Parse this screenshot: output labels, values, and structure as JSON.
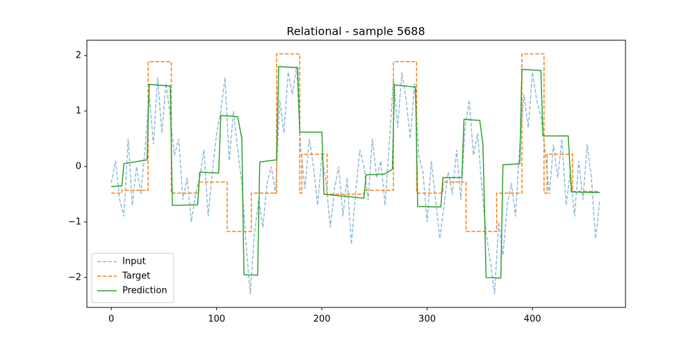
{
  "chart_data": {
    "type": "line",
    "title": "Relational - sample 5688",
    "xlim": [
      -23.2,
      488.4
    ],
    "ylim": [
      -2.54,
      2.275
    ],
    "xticks": [
      0,
      100,
      200,
      300,
      400
    ],
    "yticks": [
      {
        "value": -2,
        "label": "−2"
      },
      {
        "value": -1,
        "label": "−1"
      },
      0,
      1,
      2
    ],
    "grid": false,
    "legend": "lower left",
    "series": [
      {
        "name": "Input",
        "color": "#1f77b4",
        "linestyle": "dashed",
        "alpha": 0.5,
        "x": [
          0,
          4,
          8,
          12,
          16,
          20,
          24,
          28,
          32,
          36,
          40,
          44,
          48,
          52,
          56,
          60,
          64,
          68,
          72,
          76,
          80,
          84,
          88,
          92,
          96,
          100,
          104,
          108,
          112,
          116,
          120,
          124,
          128,
          132,
          136,
          140,
          144,
          148,
          152,
          156,
          160,
          164,
          168,
          172,
          176,
          180,
          184,
          188,
          192,
          196,
          200,
          204,
          208,
          212,
          216,
          220,
          224,
          228,
          232,
          236,
          240,
          244,
          248,
          252,
          256,
          260,
          264,
          268,
          272,
          276,
          280,
          284,
          288,
          292,
          296,
          300,
          304,
          308,
          312,
          316,
          320,
          324,
          328,
          332,
          336,
          340,
          344,
          348,
          352,
          356,
          360,
          364,
          368,
          372,
          376,
          380,
          384,
          388,
          392,
          396,
          400,
          404,
          408,
          412,
          416,
          420,
          424,
          428,
          432,
          436,
          440,
          444,
          448,
          452,
          456,
          460,
          464
        ],
        "values": [
          -0.3,
          0.1,
          -0.6,
          -0.9,
          0.5,
          -0.7,
          0.0,
          -0.5,
          0.3,
          1.3,
          0.4,
          1.6,
          0.6,
          1.5,
          0.9,
          0.2,
          0.5,
          -0.6,
          -0.2,
          -1.0,
          -0.5,
          -0.2,
          0.3,
          -0.9,
          -0.1,
          0.6,
          1.0,
          1.6,
          0.1,
          1.0,
          0.3,
          -0.3,
          -1.4,
          -2.3,
          -1.2,
          -0.6,
          -1.1,
          -0.3,
          0.0,
          -0.5,
          1.2,
          0.6,
          1.7,
          1.3,
          1.8,
          0.3,
          -0.4,
          0.5,
          0.0,
          -0.7,
          0.2,
          -0.3,
          -1.1,
          -0.4,
          0.0,
          -0.9,
          -0.2,
          -1.4,
          -0.5,
          0.3,
          0.0,
          -0.6,
          0.5,
          -0.2,
          0.1,
          -0.7,
          0.4,
          1.6,
          0.7,
          1.7,
          1.2,
          0.5,
          1.5,
          0.2,
          -0.1,
          -1.0,
          0.1,
          -0.6,
          -1.3,
          -0.7,
          -0.1,
          -0.5,
          0.3,
          -0.6,
          0.7,
          1.2,
          0.2,
          0.6,
          -0.4,
          -1.2,
          -1.7,
          -2.3,
          -1.0,
          -1.6,
          -0.7,
          -0.3,
          -0.9,
          0.4,
          1.3,
          0.7,
          1.7,
          1.2,
          0.9,
          0.3,
          -0.5,
          0.4,
          -0.2,
          0.5,
          -0.7,
          -0.1,
          -0.9,
          0.1,
          -0.6,
          0.4,
          -0.2,
          -1.3,
          -0.6
        ]
      },
      {
        "name": "Target",
        "color": "#ff7f0e",
        "linestyle": "dashed",
        "alpha": 1,
        "x": [
          0,
          10,
          10,
          35,
          35,
          57,
          57,
          83,
          83,
          110,
          110,
          133,
          133,
          157,
          157,
          179,
          179,
          181,
          181,
          205,
          205,
          240,
          240,
          268,
          268,
          290,
          290,
          315,
          315,
          337,
          337,
          366,
          366,
          390,
          390,
          411,
          411,
          414,
          414,
          438,
          438,
          464
        ],
        "values": [
          -0.48,
          -0.48,
          -0.43,
          -0.43,
          1.89,
          1.89,
          -0.48,
          -0.48,
          -0.28,
          -0.28,
          -1.17,
          -1.17,
          -0.48,
          -0.48,
          2.03,
          2.03,
          -0.48,
          -0.48,
          0.22,
          0.22,
          -0.5,
          -0.5,
          -0.43,
          -0.43,
          1.89,
          1.89,
          -0.48,
          -0.48,
          -0.28,
          -0.28,
          -1.17,
          -1.17,
          -0.48,
          -0.48,
          2.03,
          2.03,
          -0.48,
          -0.48,
          0.22,
          0.22,
          -0.45,
          -0.45
        ]
      },
      {
        "name": "Prediction",
        "color": "#2ca02c",
        "linestyle": "solid",
        "alpha": 1,
        "x": [
          0,
          10,
          12,
          34,
          36,
          56,
          58,
          82,
          84,
          102,
          104,
          120,
          124,
          126,
          139,
          141,
          157,
          159,
          177,
          179,
          200,
          202,
          240,
          242,
          258,
          260,
          267,
          269,
          289,
          291,
          313,
          315,
          333,
          335,
          350,
          353,
          356,
          370,
          372,
          388,
          390,
          408,
          410,
          434,
          437,
          464
        ],
        "values": [
          -0.36,
          -0.35,
          0.05,
          0.12,
          1.48,
          1.45,
          -0.7,
          -0.69,
          -0.1,
          -0.12,
          0.92,
          0.9,
          0.5,
          -1.95,
          -1.96,
          0.08,
          0.12,
          1.8,
          1.78,
          0.62,
          0.62,
          -0.5,
          -0.57,
          -0.15,
          -0.14,
          -0.13,
          -0.05,
          1.47,
          1.43,
          -0.72,
          -0.73,
          -0.2,
          -0.2,
          0.85,
          0.83,
          0.4,
          -2.0,
          -2.01,
          0.03,
          0.05,
          1.75,
          1.73,
          0.55,
          0.55,
          -0.46,
          -0.47
        ]
      }
    ]
  }
}
